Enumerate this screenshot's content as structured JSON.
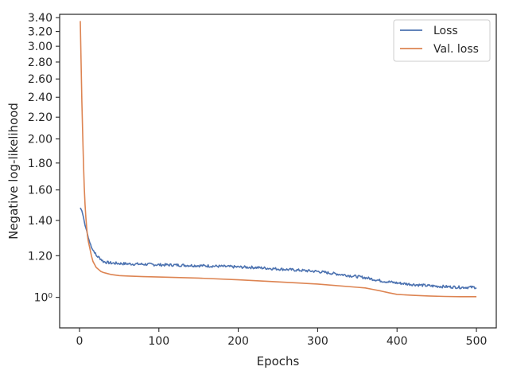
{
  "chart_data": {
    "type": "line",
    "title": "",
    "xlabel": "Epochs",
    "ylabel": "Negative log-likelihood",
    "xlim": [
      -25,
      525
    ],
    "ylim": [
      0.875,
      3.45
    ],
    "y_scale": "log",
    "grid": false,
    "legend_position": "top-right",
    "x_ticks": [
      0,
      100,
      200,
      300,
      400,
      500
    ],
    "x_tick_labels": [
      "0",
      "100",
      "200",
      "300",
      "400",
      "500"
    ],
    "y_ticks": [
      1.0,
      1.2,
      1.4,
      1.6,
      1.8,
      2.0,
      2.2,
      2.4,
      2.6,
      2.8,
      3.0,
      3.2,
      3.4
    ],
    "y_tick_labels": [
      "10⁰",
      "1.20",
      "1.40",
      "1.60",
      "1.80",
      "2.00",
      "2.20",
      "2.40",
      "2.60",
      "2.80",
      "3.00",
      "3.20",
      "3.40"
    ],
    "series": [
      {
        "name": "Loss",
        "color": "#4c72b0",
        "x": [
          1,
          3,
          5,
          7,
          9,
          11,
          13,
          15,
          17,
          19,
          21,
          25,
          30,
          35,
          40,
          50,
          60,
          70,
          80,
          90,
          100,
          120,
          140,
          160,
          180,
          200,
          220,
          240,
          260,
          280,
          300,
          320,
          340,
          360,
          380,
          400,
          420,
          440,
          460,
          480,
          500
        ],
        "y": [
          1.48,
          1.46,
          1.42,
          1.37,
          1.34,
          1.3,
          1.27,
          1.25,
          1.23,
          1.22,
          1.2,
          1.19,
          1.17,
          1.165,
          1.162,
          1.16,
          1.158,
          1.157,
          1.156,
          1.155,
          1.153,
          1.152,
          1.15,
          1.148,
          1.145,
          1.142,
          1.14,
          1.135,
          1.13,
          1.125,
          1.12,
          1.11,
          1.1,
          1.09,
          1.075,
          1.065,
          1.058,
          1.052,
          1.048,
          1.045,
          1.045
        ]
      },
      {
        "name": "Val. loss",
        "color": "#dd8452",
        "x": [
          1,
          2,
          3,
          4,
          5,
          6,
          7,
          8,
          9,
          10,
          11,
          12,
          13,
          14,
          15,
          17,
          19,
          21,
          24,
          27,
          30,
          35,
          40,
          50,
          60,
          80,
          100,
          150,
          200,
          250,
          300,
          350,
          360,
          370,
          380,
          390,
          400,
          420,
          440,
          460,
          480,
          500
        ],
        "y": [
          3.35,
          2.8,
          2.35,
          2.05,
          1.8,
          1.62,
          1.5,
          1.42,
          1.36,
          1.31,
          1.28,
          1.26,
          1.24,
          1.22,
          1.2,
          1.17,
          1.155,
          1.14,
          1.13,
          1.12,
          1.115,
          1.11,
          1.105,
          1.1,
          1.098,
          1.095,
          1.093,
          1.088,
          1.08,
          1.07,
          1.06,
          1.045,
          1.042,
          1.035,
          1.028,
          1.02,
          1.013,
          1.009,
          1.006,
          1.004,
          1.003,
          1.003
        ]
      }
    ]
  }
}
